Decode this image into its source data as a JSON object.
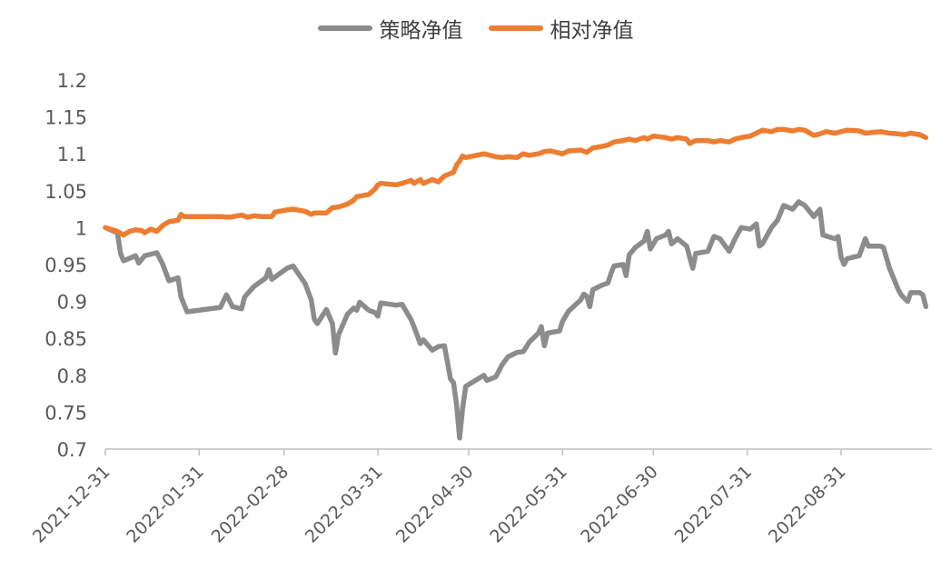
{
  "chart_data": {
    "type": "line",
    "legend_position": "top-center",
    "grid": false,
    "ylim": [
      0.7,
      1.2
    ],
    "yticks": [
      "1.2",
      "1.15",
      "1.1",
      "1.05",
      "1",
      "0.95",
      "0.9",
      "0.85",
      "0.8",
      "0.75",
      "0.7"
    ],
    "xlim": [
      "2021-12-31",
      "2022-09-30"
    ],
    "xticks": [
      "2021-12-31",
      "2022-01-31",
      "2022-02-28",
      "2022-03-31",
      "2022-04-30",
      "2022-05-31",
      "2022-06-30",
      "2022-07-31",
      "2022-08-31"
    ],
    "series": [
      {
        "name": "策略净值",
        "color": "#8c8c8c",
        "points": [
          [
            "2021-12-31",
            1.0
          ],
          [
            "2022-01-04",
            0.993
          ],
          [
            "2022-01-05",
            0.965
          ],
          [
            "2022-01-06",
            0.955
          ],
          [
            "2022-01-10",
            0.962
          ],
          [
            "2022-01-11",
            0.952
          ],
          [
            "2022-01-13",
            0.962
          ],
          [
            "2022-01-17",
            0.966
          ],
          [
            "2022-01-19",
            0.95
          ],
          [
            "2022-01-21",
            0.928
          ],
          [
            "2022-01-24",
            0.932
          ],
          [
            "2022-01-25",
            0.906
          ],
          [
            "2022-01-27",
            0.886
          ],
          [
            "2022-02-07",
            0.892
          ],
          [
            "2022-02-09",
            0.909
          ],
          [
            "2022-02-11",
            0.893
          ],
          [
            "2022-02-14",
            0.89
          ],
          [
            "2022-02-15",
            0.906
          ],
          [
            "2022-02-18",
            0.92
          ],
          [
            "2022-02-22",
            0.932
          ],
          [
            "2022-02-23",
            0.943
          ],
          [
            "2022-02-24",
            0.93
          ],
          [
            "2022-03-01",
            0.945
          ],
          [
            "2022-03-03",
            0.948
          ],
          [
            "2022-03-07",
            0.924
          ],
          [
            "2022-03-09",
            0.902
          ],
          [
            "2022-03-10",
            0.876
          ],
          [
            "2022-03-11",
            0.87
          ],
          [
            "2022-03-14",
            0.889
          ],
          [
            "2022-03-16",
            0.87
          ],
          [
            "2022-03-17",
            0.83
          ],
          [
            "2022-03-18",
            0.855
          ],
          [
            "2022-03-21",
            0.883
          ],
          [
            "2022-03-23",
            0.891
          ],
          [
            "2022-03-24",
            0.888
          ],
          [
            "2022-03-25",
            0.899
          ],
          [
            "2022-03-28",
            0.888
          ],
          [
            "2022-03-30",
            0.885
          ],
          [
            "2022-03-31",
            0.88
          ],
          [
            "2022-04-01",
            0.898
          ],
          [
            "2022-04-06",
            0.895
          ],
          [
            "2022-04-08",
            0.896
          ],
          [
            "2022-04-11",
            0.875
          ],
          [
            "2022-04-12",
            0.865
          ],
          [
            "2022-04-14",
            0.843
          ],
          [
            "2022-04-15",
            0.848
          ],
          [
            "2022-04-18",
            0.834
          ],
          [
            "2022-04-20",
            0.839
          ],
          [
            "2022-04-22",
            0.84
          ],
          [
            "2022-04-24",
            0.795
          ],
          [
            "2022-04-25",
            0.79
          ],
          [
            "2022-04-26",
            0.76
          ],
          [
            "2022-04-27",
            0.715
          ],
          [
            "2022-04-28",
            0.755
          ],
          [
            "2022-04-29",
            0.785
          ],
          [
            "2022-05-05",
            0.8
          ],
          [
            "2022-05-06",
            0.793
          ],
          [
            "2022-05-09",
            0.798
          ],
          [
            "2022-05-11",
            0.814
          ],
          [
            "2022-05-13",
            0.825
          ],
          [
            "2022-05-16",
            0.831
          ],
          [
            "2022-05-18",
            0.832
          ],
          [
            "2022-05-19",
            0.838
          ],
          [
            "2022-05-20",
            0.845
          ],
          [
            "2022-05-23",
            0.857
          ],
          [
            "2022-05-24",
            0.866
          ],
          [
            "2022-05-25",
            0.84
          ],
          [
            "2022-05-26",
            0.857
          ],
          [
            "2022-05-30",
            0.86
          ],
          [
            "2022-05-31",
            0.873
          ],
          [
            "2022-06-02",
            0.887
          ],
          [
            "2022-06-06",
            0.902
          ],
          [
            "2022-06-07",
            0.91
          ],
          [
            "2022-06-08",
            0.907
          ],
          [
            "2022-06-09",
            0.893
          ],
          [
            "2022-06-10",
            0.916
          ],
          [
            "2022-06-13",
            0.922
          ],
          [
            "2022-06-15",
            0.925
          ],
          [
            "2022-06-16",
            0.938
          ],
          [
            "2022-06-17",
            0.948
          ],
          [
            "2022-06-20",
            0.95
          ],
          [
            "2022-06-21",
            0.935
          ],
          [
            "2022-06-22",
            0.963
          ],
          [
            "2022-06-24",
            0.973
          ],
          [
            "2022-06-27",
            0.982
          ],
          [
            "2022-06-28",
            0.995
          ],
          [
            "2022-06-29",
            0.971
          ],
          [
            "2022-07-01",
            0.985
          ],
          [
            "2022-07-04",
            0.99
          ],
          [
            "2022-07-05",
            0.995
          ],
          [
            "2022-07-06",
            0.978
          ],
          [
            "2022-07-08",
            0.985
          ],
          [
            "2022-07-11",
            0.975
          ],
          [
            "2022-07-12",
            0.96
          ],
          [
            "2022-07-13",
            0.945
          ],
          [
            "2022-07-14",
            0.965
          ],
          [
            "2022-07-18",
            0.968
          ],
          [
            "2022-07-20",
            0.988
          ],
          [
            "2022-07-22",
            0.985
          ],
          [
            "2022-07-25",
            0.968
          ],
          [
            "2022-07-27",
            0.985
          ],
          [
            "2022-07-29",
            1.0
          ],
          [
            "2022-08-01",
            0.998
          ],
          [
            "2022-08-03",
            1.005
          ],
          [
            "2022-08-04",
            0.975
          ],
          [
            "2022-08-05",
            0.978
          ],
          [
            "2022-08-08",
            1.0
          ],
          [
            "2022-08-10",
            1.01
          ],
          [
            "2022-08-11",
            1.02
          ],
          [
            "2022-08-12",
            1.03
          ],
          [
            "2022-08-15",
            1.025
          ],
          [
            "2022-08-17",
            1.035
          ],
          [
            "2022-08-19",
            1.03
          ],
          [
            "2022-08-22",
            1.015
          ],
          [
            "2022-08-23",
            1.02
          ],
          [
            "2022-08-24",
            1.025
          ],
          [
            "2022-08-25",
            0.99
          ],
          [
            "2022-08-29",
            0.985
          ],
          [
            "2022-08-30",
            0.988
          ],
          [
            "2022-08-31",
            0.96
          ],
          [
            "2022-09-01",
            0.95
          ],
          [
            "2022-09-02",
            0.958
          ],
          [
            "2022-09-06",
            0.962
          ],
          [
            "2022-09-08",
            0.985
          ],
          [
            "2022-09-09",
            0.975
          ],
          [
            "2022-09-13",
            0.975
          ],
          [
            "2022-09-14",
            0.973
          ],
          [
            "2022-09-16",
            0.945
          ],
          [
            "2022-09-19",
            0.915
          ],
          [
            "2022-09-20",
            0.908
          ],
          [
            "2022-09-22",
            0.9
          ],
          [
            "2022-09-23",
            0.912
          ],
          [
            "2022-09-26",
            0.912
          ],
          [
            "2022-09-27",
            0.909
          ],
          [
            "2022-09-28",
            0.893
          ]
        ]
      },
      {
        "name": "相对净值",
        "color": "#ed7d31",
        "points": [
          [
            "2021-12-31",
            1.0
          ],
          [
            "2022-01-04",
            0.995
          ],
          [
            "2022-01-06",
            0.99
          ],
          [
            "2022-01-08",
            0.995
          ],
          [
            "2022-01-10",
            0.997
          ],
          [
            "2022-01-12",
            0.996
          ],
          [
            "2022-01-13",
            0.993
          ],
          [
            "2022-01-15",
            0.998
          ],
          [
            "2022-01-17",
            0.995
          ],
          [
            "2022-01-19",
            1.003
          ],
          [
            "2022-01-21",
            1.008
          ],
          [
            "2022-01-24",
            1.01
          ],
          [
            "2022-01-25",
            1.018
          ],
          [
            "2022-01-26",
            1.015
          ],
          [
            "2022-02-07",
            1.015
          ],
          [
            "2022-02-10",
            1.014
          ],
          [
            "2022-02-14",
            1.017
          ],
          [
            "2022-02-16",
            1.014
          ],
          [
            "2022-02-18",
            1.016
          ],
          [
            "2022-02-21",
            1.015
          ],
          [
            "2022-02-24",
            1.015
          ],
          [
            "2022-02-25",
            1.021
          ],
          [
            "2022-03-01",
            1.024
          ],
          [
            "2022-03-03",
            1.025
          ],
          [
            "2022-03-07",
            1.022
          ],
          [
            "2022-03-09",
            1.018
          ],
          [
            "2022-03-10",
            1.02
          ],
          [
            "2022-03-14",
            1.02
          ],
          [
            "2022-03-16",
            1.027
          ],
          [
            "2022-03-18",
            1.028
          ],
          [
            "2022-03-21",
            1.032
          ],
          [
            "2022-03-23",
            1.037
          ],
          [
            "2022-03-24",
            1.042
          ],
          [
            "2022-03-28",
            1.045
          ],
          [
            "2022-03-30",
            1.052
          ],
          [
            "2022-03-31",
            1.058
          ],
          [
            "2022-04-01",
            1.06
          ],
          [
            "2022-04-06",
            1.058
          ],
          [
            "2022-04-08",
            1.06
          ],
          [
            "2022-04-11",
            1.064
          ],
          [
            "2022-04-12",
            1.06
          ],
          [
            "2022-04-14",
            1.065
          ],
          [
            "2022-04-15",
            1.06
          ],
          [
            "2022-04-18",
            1.065
          ],
          [
            "2022-04-20",
            1.062
          ],
          [
            "2022-04-21",
            1.066
          ],
          [
            "2022-04-22",
            1.07
          ],
          [
            "2022-04-25",
            1.075
          ],
          [
            "2022-04-26",
            1.085
          ],
          [
            "2022-04-27",
            1.09
          ],
          [
            "2022-04-28",
            1.097
          ],
          [
            "2022-04-29",
            1.095
          ],
          [
            "2022-05-05",
            1.1
          ],
          [
            "2022-05-09",
            1.096
          ],
          [
            "2022-05-11",
            1.095
          ],
          [
            "2022-05-13",
            1.096
          ],
          [
            "2022-05-16",
            1.095
          ],
          [
            "2022-05-18",
            1.1
          ],
          [
            "2022-05-20",
            1.098
          ],
          [
            "2022-05-23",
            1.1
          ],
          [
            "2022-05-25",
            1.103
          ],
          [
            "2022-05-27",
            1.104
          ],
          [
            "2022-05-31",
            1.1
          ],
          [
            "2022-06-02",
            1.104
          ],
          [
            "2022-06-06",
            1.105
          ],
          [
            "2022-06-08",
            1.102
          ],
          [
            "2022-06-10",
            1.108
          ],
          [
            "2022-06-13",
            1.11
          ],
          [
            "2022-06-15",
            1.112
          ],
          [
            "2022-06-17",
            1.116
          ],
          [
            "2022-06-20",
            1.118
          ],
          [
            "2022-06-22",
            1.12
          ],
          [
            "2022-06-24",
            1.118
          ],
          [
            "2022-06-27",
            1.122
          ],
          [
            "2022-06-28",
            1.12
          ],
          [
            "2022-06-30",
            1.124
          ],
          [
            "2022-07-04",
            1.122
          ],
          [
            "2022-07-06",
            1.12
          ],
          [
            "2022-07-08",
            1.122
          ],
          [
            "2022-07-11",
            1.12
          ],
          [
            "2022-07-12",
            1.114
          ],
          [
            "2022-07-14",
            1.118
          ],
          [
            "2022-07-18",
            1.118
          ],
          [
            "2022-07-20",
            1.116
          ],
          [
            "2022-07-22",
            1.118
          ],
          [
            "2022-07-25",
            1.116
          ],
          [
            "2022-07-27",
            1.12
          ],
          [
            "2022-07-29",
            1.122
          ],
          [
            "2022-08-01",
            1.124
          ],
          [
            "2022-08-03",
            1.128
          ],
          [
            "2022-08-05",
            1.132
          ],
          [
            "2022-08-08",
            1.13
          ],
          [
            "2022-08-10",
            1.133
          ],
          [
            "2022-08-12",
            1.133
          ],
          [
            "2022-08-15",
            1.131
          ],
          [
            "2022-08-17",
            1.133
          ],
          [
            "2022-08-19",
            1.132
          ],
          [
            "2022-08-22",
            1.125
          ],
          [
            "2022-08-24",
            1.127
          ],
          [
            "2022-08-26",
            1.13
          ],
          [
            "2022-08-29",
            1.128
          ],
          [
            "2022-08-31",
            1.13
          ],
          [
            "2022-09-02",
            1.132
          ],
          [
            "2022-09-06",
            1.131
          ],
          [
            "2022-09-08",
            1.128
          ],
          [
            "2022-09-13",
            1.13
          ],
          [
            "2022-09-16",
            1.128
          ],
          [
            "2022-09-19",
            1.127
          ],
          [
            "2022-09-21",
            1.126
          ],
          [
            "2022-09-23",
            1.128
          ],
          [
            "2022-09-26",
            1.126
          ],
          [
            "2022-09-28",
            1.122
          ]
        ]
      }
    ]
  }
}
